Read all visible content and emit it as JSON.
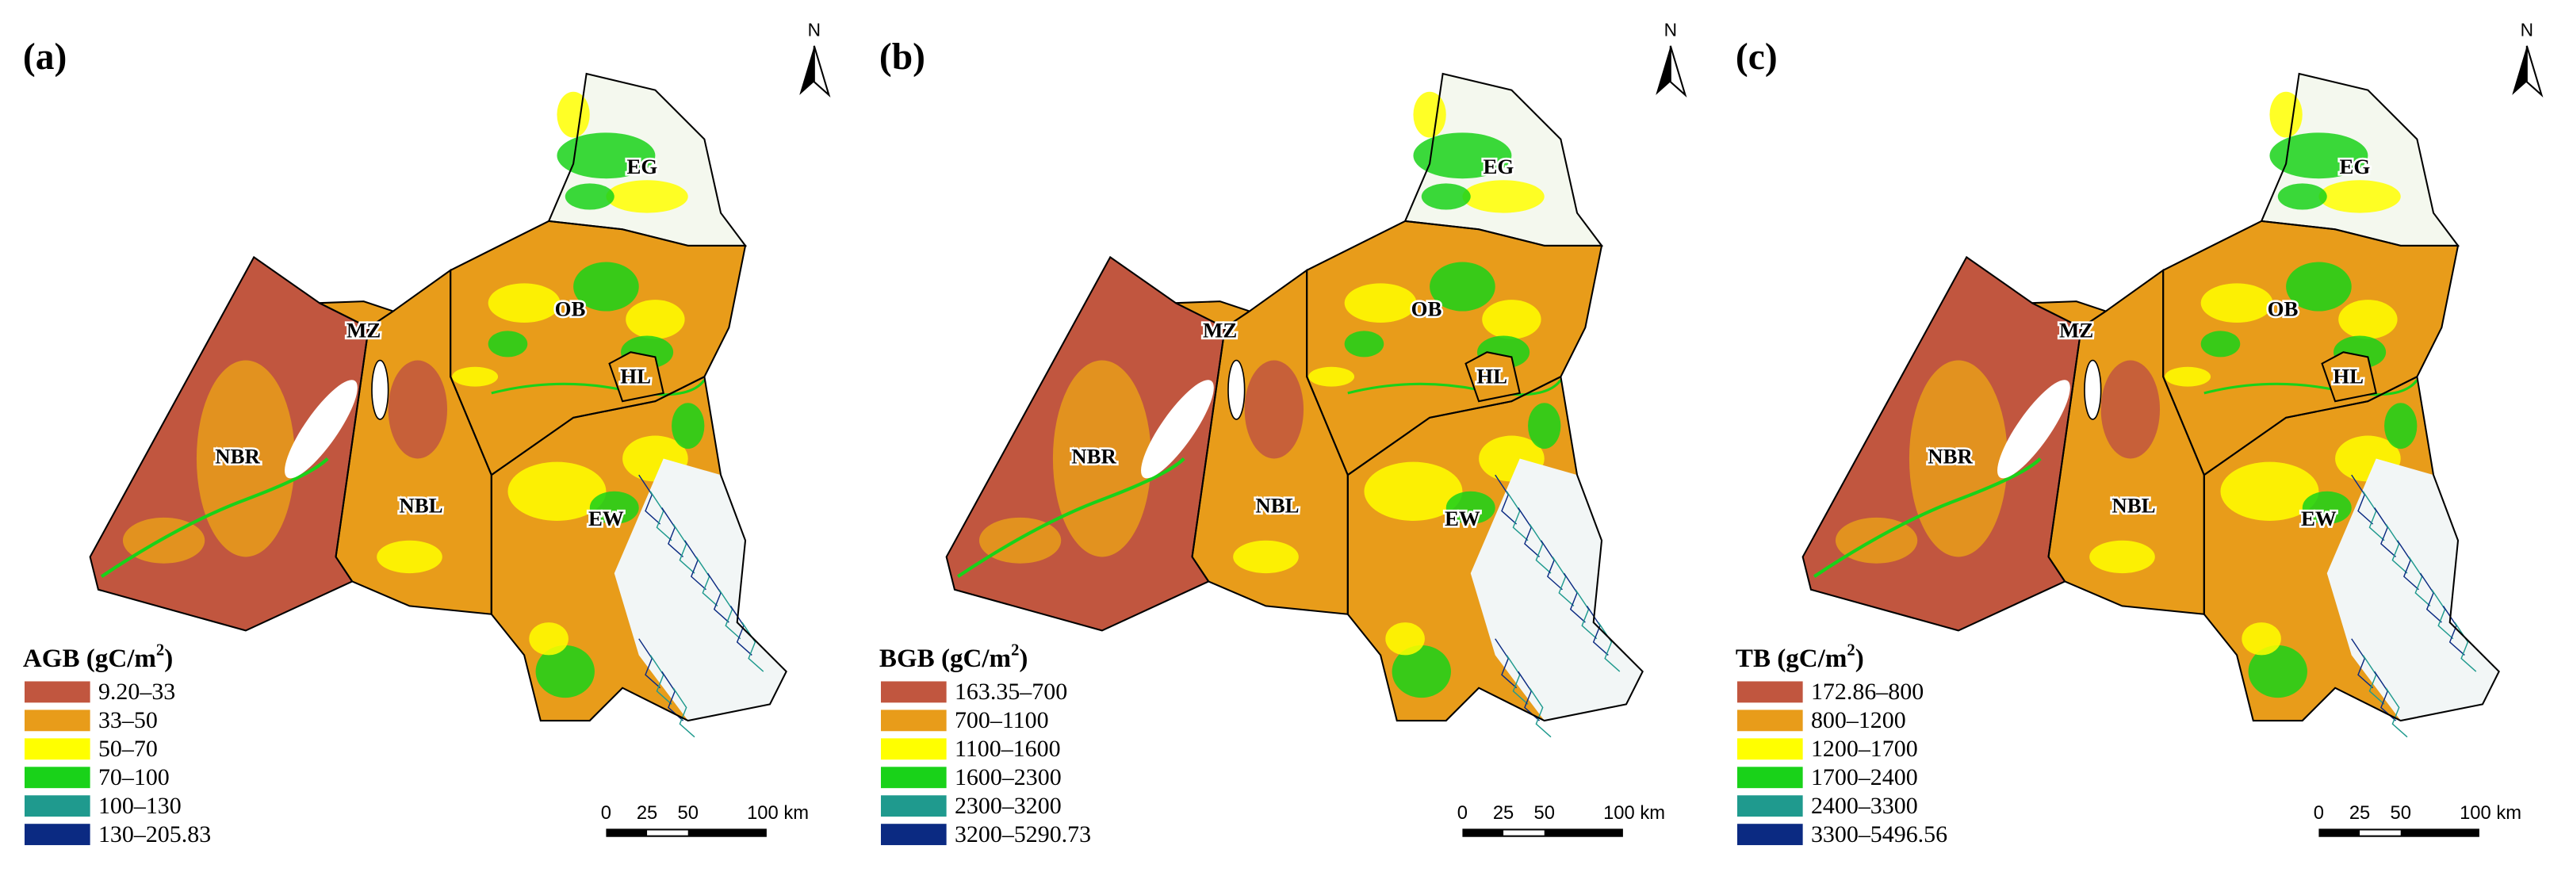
{
  "north": "N",
  "scale_labels": [
    "0",
    "25",
    "50",
    "100 km"
  ],
  "regions": [
    "EG",
    "OB",
    "MZ",
    "HL",
    "NBR",
    "NBL",
    "EW"
  ],
  "panels": [
    {
      "label": "(a)",
      "legend_title": {
        "text": "AGB (gC/m",
        "sup": "2",
        "end": ")"
      },
      "legend": [
        {
          "label": "9.20–33",
          "color": "#c1563f"
        },
        {
          "label": "33–50",
          "color": "#e89c1a"
        },
        {
          "label": "50–70",
          "color": "#ffff00"
        },
        {
          "label": "70–100",
          "color": "#19d219"
        },
        {
          "label": "100–130",
          "color": "#1f9a8e"
        },
        {
          "label": "130–205.83",
          "color": "#0b2a82"
        }
      ]
    },
    {
      "label": "(b)",
      "legend_title": {
        "text": "BGB (gC/m",
        "sup": "2",
        "end": ")"
      },
      "legend": [
        {
          "label": "163.35–700",
          "color": "#c1563f"
        },
        {
          "label": "700–1100",
          "color": "#e89c1a"
        },
        {
          "label": "1100–1600",
          "color": "#ffff00"
        },
        {
          "label": "1600–2300",
          "color": "#19d219"
        },
        {
          "label": "2300–3200",
          "color": "#1f9a8e"
        },
        {
          "label": "3200–5290.73",
          "color": "#0b2a82"
        }
      ]
    },
    {
      "label": "(c)",
      "legend_title": {
        "text": "TB (gC/m",
        "sup": "2",
        "end": ")"
      },
      "legend": [
        {
          "label": "172.86–800",
          "color": "#c1563f"
        },
        {
          "label": "800–1200",
          "color": "#e89c1a"
        },
        {
          "label": "1200–1700",
          "color": "#ffff00"
        },
        {
          "label": "1700–2400",
          "color": "#19d219"
        },
        {
          "label": "2400–3300",
          "color": "#1f9a8e"
        },
        {
          "label": "3300–5496.56",
          "color": "#0b2a82"
        }
      ]
    }
  ]
}
